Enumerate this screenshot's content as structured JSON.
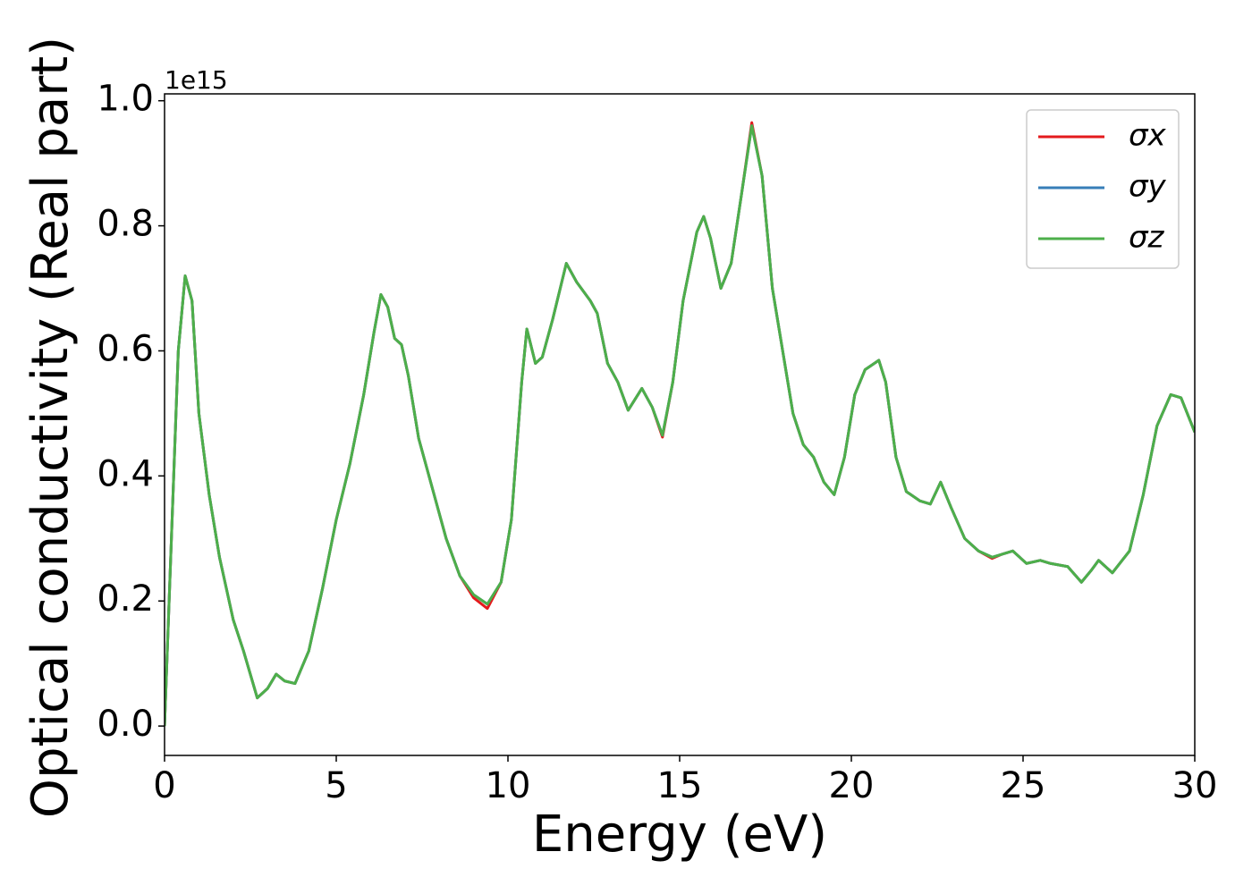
{
  "chart_data": {
    "type": "line",
    "xlabel": "Energy (eV)",
    "ylabel": "Optical conductivity (Real part)",
    "y_offset_label": "1e15",
    "xlim": [
      0,
      30
    ],
    "ylim": [
      -0.047,
      1.011
    ],
    "xticks": [
      0,
      5,
      10,
      15,
      20,
      25,
      30
    ],
    "yticks": [
      {
        "value": 0,
        "label": "0.0"
      },
      0.2,
      0.4,
      0.6,
      0.8,
      {
        "value": 1,
        "label": "1.0"
      }
    ],
    "legend": "upper right",
    "x": [
      0,
      0.2,
      0.4,
      0.6,
      0.8,
      1.0,
      1.3,
      1.6,
      2.0,
      2.3,
      2.7,
      3.0,
      3.25,
      3.5,
      3.8,
      4.2,
      4.6,
      5.0,
      5.4,
      5.8,
      6.1,
      6.3,
      6.5,
      6.7,
      6.9,
      7.1,
      7.4,
      7.8,
      8.2,
      8.6,
      9.0,
      9.4,
      9.8,
      10.1,
      10.4,
      10.55,
      10.8,
      11.0,
      11.3,
      11.7,
      12.0,
      12.4,
      12.6,
      12.9,
      13.2,
      13.5,
      13.9,
      14.2,
      14.5,
      14.8,
      15.1,
      15.5,
      15.7,
      15.9,
      16.2,
      16.5,
      16.8,
      17.1,
      17.4,
      17.7,
      18.0,
      18.3,
      18.6,
      18.9,
      19.2,
      19.5,
      19.8,
      20.1,
      20.4,
      20.8,
      21.0,
      21.3,
      21.6,
      22.0,
      22.3,
      22.6,
      22.9,
      23.3,
      23.7,
      24.1,
      24.4,
      24.7,
      25.1,
      25.5,
      25.8,
      26.3,
      26.7,
      27.0,
      27.2,
      27.6,
      28.1,
      28.5,
      28.9,
      29.3,
      29.6,
      30.0
    ],
    "series": [
      {
        "name": "σx",
        "color": "#e41a1c",
        "values": [
          0.0,
          0.3,
          0.6,
          0.72,
          0.68,
          0.5,
          0.37,
          0.27,
          0.17,
          0.12,
          0.045,
          0.06,
          0.083,
          0.072,
          0.068,
          0.12,
          0.22,
          0.33,
          0.42,
          0.53,
          0.63,
          0.69,
          0.67,
          0.62,
          0.61,
          0.56,
          0.46,
          0.38,
          0.3,
          0.24,
          0.205,
          0.188,
          0.23,
          0.33,
          0.55,
          0.635,
          0.58,
          0.59,
          0.65,
          0.74,
          0.71,
          0.68,
          0.66,
          0.58,
          0.55,
          0.505,
          0.54,
          0.51,
          0.462,
          0.55,
          0.68,
          0.79,
          0.815,
          0.78,
          0.7,
          0.74,
          0.85,
          0.965,
          0.88,
          0.7,
          0.6,
          0.5,
          0.45,
          0.43,
          0.39,
          0.37,
          0.43,
          0.53,
          0.57,
          0.585,
          0.55,
          0.43,
          0.375,
          0.36,
          0.355,
          0.39,
          0.35,
          0.3,
          0.28,
          0.268,
          0.275,
          0.28,
          0.26,
          0.265,
          0.26,
          0.255,
          0.23,
          0.25,
          0.265,
          0.245,
          0.28,
          0.37,
          0.48,
          0.53,
          0.525,
          0.47
        ]
      },
      {
        "name": "σy",
        "color": "#377eb8",
        "values": [
          0.0,
          0.3,
          0.6,
          0.72,
          0.68,
          0.5,
          0.37,
          0.27,
          0.17,
          0.12,
          0.045,
          0.06,
          0.083,
          0.072,
          0.068,
          0.12,
          0.22,
          0.33,
          0.42,
          0.53,
          0.63,
          0.69,
          0.67,
          0.62,
          0.61,
          0.56,
          0.46,
          0.38,
          0.3,
          0.24,
          0.21,
          0.195,
          0.23,
          0.33,
          0.55,
          0.635,
          0.58,
          0.59,
          0.65,
          0.74,
          0.71,
          0.68,
          0.66,
          0.58,
          0.55,
          0.505,
          0.54,
          0.51,
          0.465,
          0.55,
          0.68,
          0.79,
          0.815,
          0.78,
          0.7,
          0.74,
          0.85,
          0.96,
          0.88,
          0.7,
          0.6,
          0.5,
          0.45,
          0.43,
          0.39,
          0.37,
          0.43,
          0.53,
          0.57,
          0.585,
          0.55,
          0.43,
          0.375,
          0.36,
          0.355,
          0.39,
          0.35,
          0.3,
          0.28,
          0.27,
          0.275,
          0.28,
          0.26,
          0.265,
          0.26,
          0.255,
          0.23,
          0.25,
          0.265,
          0.245,
          0.28,
          0.37,
          0.48,
          0.53,
          0.525,
          0.47
        ]
      },
      {
        "name": "σz",
        "color": "#4daf4a",
        "values": [
          0.0,
          0.3,
          0.6,
          0.72,
          0.68,
          0.5,
          0.37,
          0.27,
          0.17,
          0.12,
          0.045,
          0.06,
          0.083,
          0.072,
          0.068,
          0.12,
          0.22,
          0.33,
          0.42,
          0.53,
          0.63,
          0.69,
          0.67,
          0.62,
          0.61,
          0.56,
          0.46,
          0.38,
          0.3,
          0.24,
          0.21,
          0.195,
          0.23,
          0.33,
          0.55,
          0.635,
          0.58,
          0.59,
          0.65,
          0.74,
          0.71,
          0.68,
          0.66,
          0.58,
          0.55,
          0.505,
          0.54,
          0.51,
          0.465,
          0.55,
          0.68,
          0.79,
          0.815,
          0.78,
          0.7,
          0.74,
          0.85,
          0.96,
          0.88,
          0.7,
          0.6,
          0.5,
          0.45,
          0.43,
          0.39,
          0.37,
          0.43,
          0.53,
          0.57,
          0.585,
          0.55,
          0.43,
          0.375,
          0.36,
          0.355,
          0.39,
          0.35,
          0.3,
          0.28,
          0.27,
          0.275,
          0.28,
          0.26,
          0.265,
          0.26,
          0.255,
          0.23,
          0.25,
          0.265,
          0.245,
          0.28,
          0.37,
          0.48,
          0.53,
          0.525,
          0.47
        ]
      }
    ]
  }
}
